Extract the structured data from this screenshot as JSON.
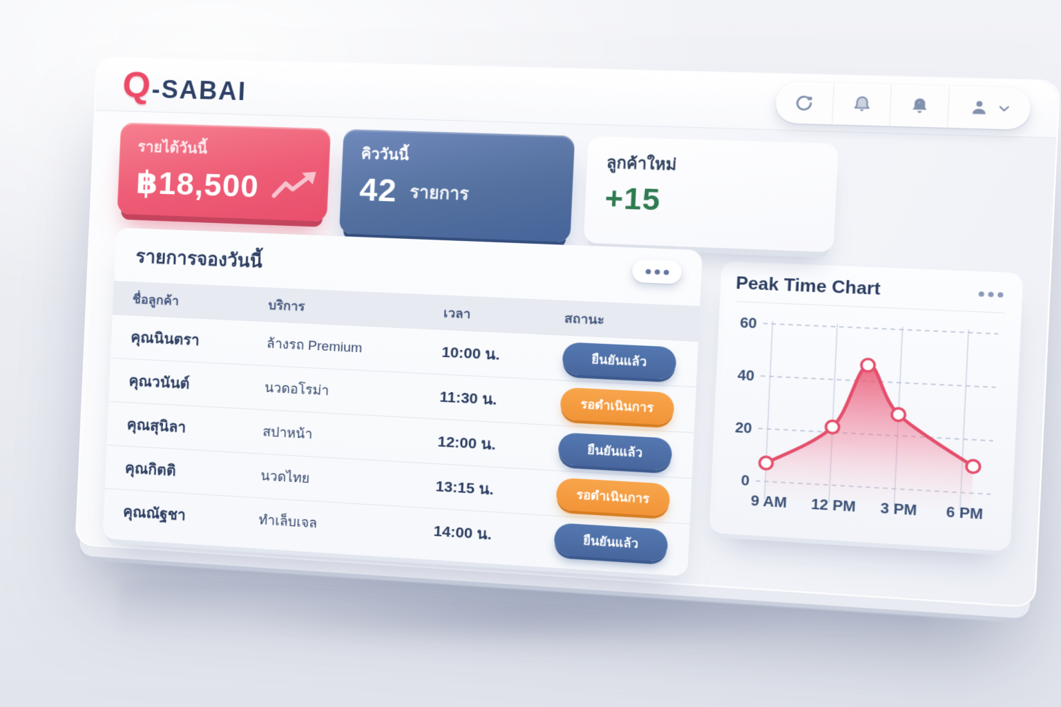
{
  "brand": {
    "q": "Q",
    "name": "-SABAI"
  },
  "toolbar": {
    "buttons": [
      "refresh",
      "notifications-outline",
      "notifications-filled",
      "profile"
    ]
  },
  "stats": {
    "revenue": {
      "label": "รายได้วันนี้",
      "value": "฿18,500"
    },
    "queue": {
      "label": "คิววันนี้",
      "value": "42",
      "unit": "รายการ"
    },
    "new_customers": {
      "label": "ลูกค้าใหม่",
      "value": "+15"
    }
  },
  "bookings": {
    "title": "รายการจองวันนี้",
    "columns": {
      "name": "ชื่อลูกค้า",
      "service": "บริการ",
      "time": "เวลา",
      "status": "สถานะ"
    },
    "rows": [
      {
        "name": "คุณนินตรา",
        "service": "ล้างรถ Premium",
        "time": "10:00 น.",
        "status": "ยืนยันแล้ว",
        "status_type": "confirmed"
      },
      {
        "name": "คุณวนันต์",
        "service": "นวดอโรม่า",
        "time": "11:30 น.",
        "status": "รอดำเนินการ",
        "status_type": "pending"
      },
      {
        "name": "คุณสุนิลา",
        "service": "สปาหน้า",
        "time": "12:00 น.",
        "status": "ยืนยันแล้ว",
        "status_type": "confirmed"
      },
      {
        "name": "คุณกิตติ",
        "service": "นวดไทย",
        "time": "13:15 น.",
        "status": "รอดำเนินการ",
        "status_type": "pending"
      },
      {
        "name": "คุณณัฐชา",
        "service": "ทำเล็บเจล",
        "time": "14:00 น.",
        "status": "ยืนยันแล้ว",
        "status_type": "confirmed"
      }
    ]
  },
  "chart": {
    "title": "Peak Time Chart"
  },
  "chart_data": {
    "type": "area",
    "title": "Peak Time Chart",
    "x_hours": [
      9,
      12,
      13.5,
      15,
      18.5
    ],
    "values": [
      7,
      22,
      46,
      28,
      10
    ],
    "xtick_hours": [
      9,
      12,
      15,
      18
    ],
    "xtick_labels": [
      "9 AM",
      "12 PM",
      "3 PM",
      "6 PM"
    ],
    "yticks": [
      0,
      20,
      40,
      60
    ],
    "ylim": [
      0,
      60
    ],
    "xlim": [
      8.7,
      19.2
    ],
    "grid": true,
    "legend": false,
    "line_color": "#e44f6c",
    "point_fill": "#ffffff",
    "area_top": "rgba(232,80,110,0.85)",
    "area_mid": "rgba(240,120,148,0.40)",
    "area_bottom": "rgba(250,205,218,0.04)"
  },
  "colors": {
    "accent_pink": "#ee5a74",
    "accent_blue": "#4a6ba4",
    "accent_orange": "#f29437",
    "success_green": "#2e7b50",
    "text_navy": "#2b3c60",
    "icon_slate": "#8291ad"
  }
}
